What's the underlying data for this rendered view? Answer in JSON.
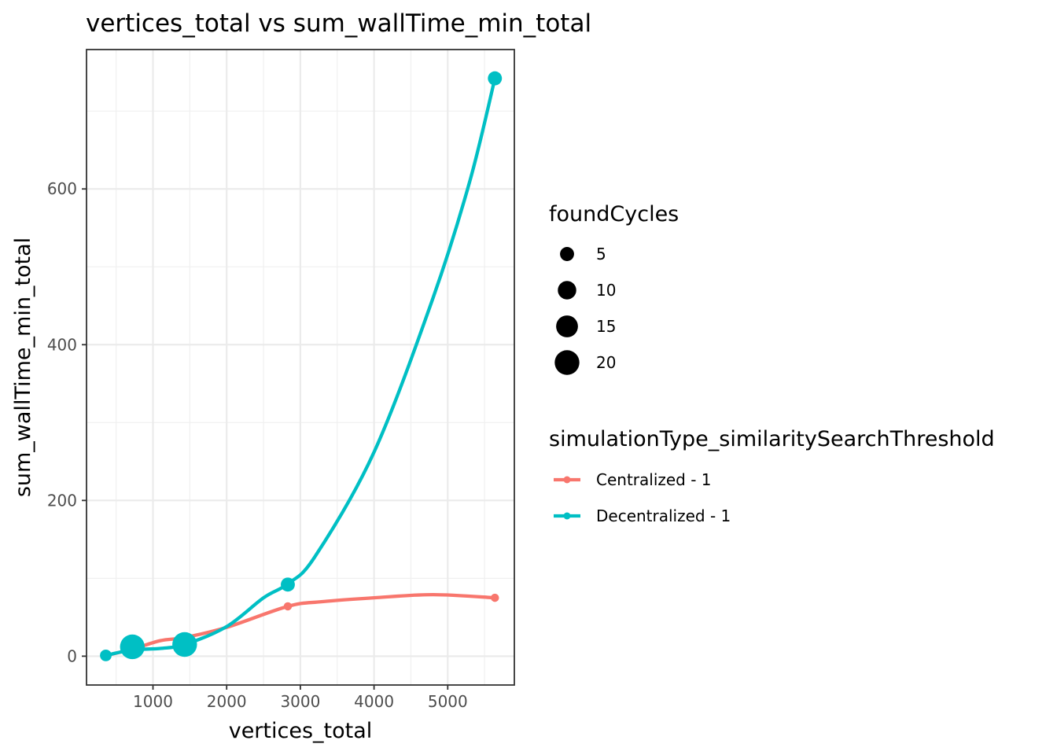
{
  "chart_data": {
    "type": "scatter",
    "title": "vertices_total  vs  sum_wallTime_min_total",
    "xlabel": "vertices_total",
    "ylabel": "sum_wallTime_min_total",
    "xlim": [
      98,
      5904
    ],
    "ylim": [
      -37,
      779
    ],
    "x_ticks": [
      1000,
      2000,
      3000,
      4000,
      5000
    ],
    "y_ticks": [
      0,
      200,
      400,
      600
    ],
    "grid": true,
    "size_legend": {
      "title": "foundCycles",
      "entries": [
        {
          "label": "5",
          "value": 5
        },
        {
          "label": "10",
          "value": 10
        },
        {
          "label": "15",
          "value": 15
        },
        {
          "label": "20",
          "value": 20
        }
      ]
    },
    "color_legend": {
      "title": "simulationType_similaritySearchThreshold",
      "placement": "right"
    },
    "series": [
      {
        "name": "Centralized - 1",
        "color": "#F8766D",
        "points": [
          {
            "x": 360,
            "y": 1,
            "foundCycles": 1
          },
          {
            "x": 720,
            "y": 9,
            "foundCycles": 1
          },
          {
            "x": 1430,
            "y": 24,
            "foundCycles": 1
          },
          {
            "x": 2830,
            "y": 64,
            "foundCycles": 1
          },
          {
            "x": 5640,
            "y": 75,
            "foundCycles": 1
          }
        ],
        "smooth": [
          [
            360,
            1
          ],
          [
            720,
            9
          ],
          [
            1100,
            20
          ],
          [
            1430,
            24
          ],
          [
            2000,
            37
          ],
          [
            2830,
            64
          ],
          [
            3300,
            70
          ],
          [
            4000,
            75
          ],
          [
            4800,
            79
          ],
          [
            5640,
            75
          ]
        ]
      },
      {
        "name": "Decentralized - 1",
        "color": "#00BFC4",
        "points": [
          {
            "x": 360,
            "y": 1,
            "foundCycles": 3
          },
          {
            "x": 720,
            "y": 12,
            "foundCycles": 20
          },
          {
            "x": 1430,
            "y": 15,
            "foundCycles": 20
          },
          {
            "x": 2830,
            "y": 92,
            "foundCycles": 5
          },
          {
            "x": 5640,
            "y": 742,
            "foundCycles": 5
          }
        ],
        "smooth": [
          [
            360,
            1
          ],
          [
            720,
            8
          ],
          [
            1100,
            10
          ],
          [
            1430,
            15
          ],
          [
            2000,
            38
          ],
          [
            2500,
            75
          ],
          [
            2830,
            93
          ],
          [
            3200,
            128
          ],
          [
            4000,
            262
          ],
          [
            4800,
            460
          ],
          [
            5300,
            610
          ],
          [
            5640,
            742
          ]
        ]
      }
    ]
  }
}
